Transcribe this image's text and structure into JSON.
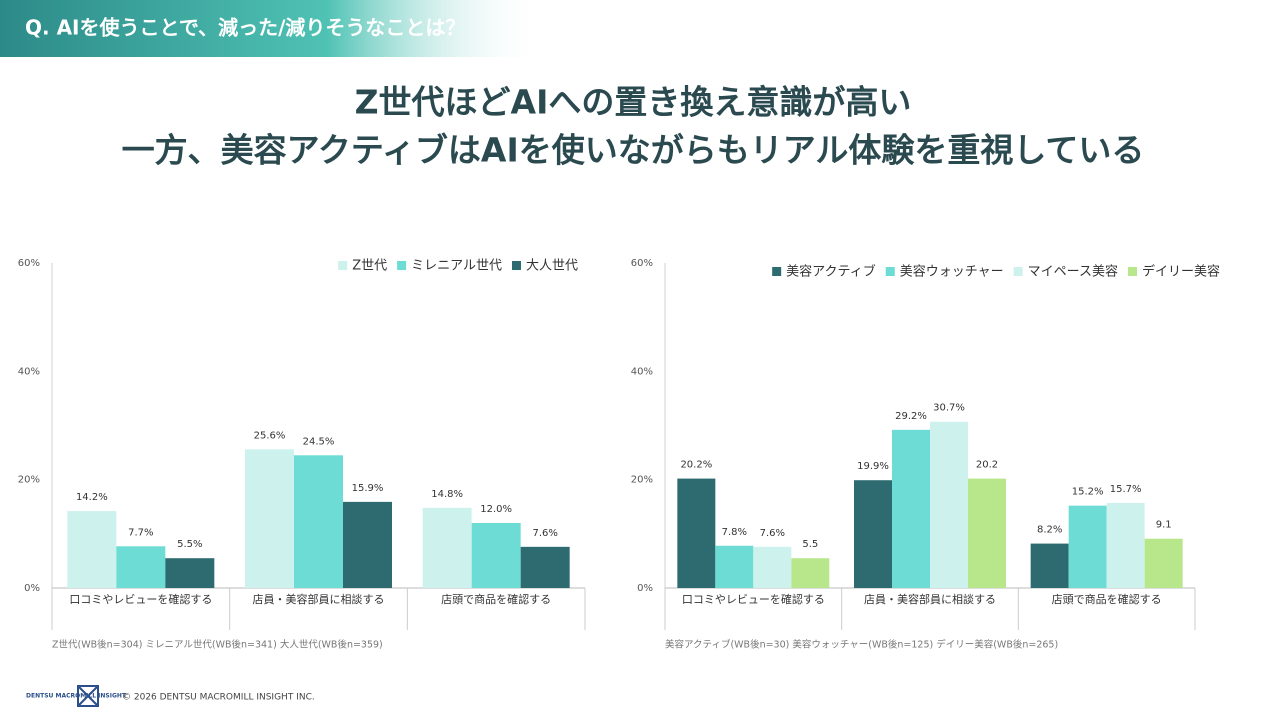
{
  "header": {
    "question": "Q. AIを使うことで、減った/減りそうなことは？"
  },
  "headline": [
    "Z世代ほどAIへの置き換え意識が高い",
    "一方、美容アクティブはAIを使いながらもリアル体験を重視している"
  ],
  "chart_data": [
    {
      "type": "bar",
      "categories": [
        "口コミやレビューを確認する",
        "店員・美容部員に相談する",
        "店頭で商品を確認する"
      ],
      "series": [
        {
          "name": "Z世代",
          "color": "#cdf2ee",
          "values": [
            14.2,
            25.6,
            14.8
          ],
          "value_labels": [
            "14.2%",
            "25.6%",
            "14.8%"
          ]
        },
        {
          "name": "ミレニアル世代",
          "color": "#6ddcd4",
          "values": [
            7.7,
            24.5,
            12.0
          ],
          "value_labels": [
            "7.7%",
            "24.5%",
            "12.0%"
          ]
        },
        {
          "name": "大人世代",
          "color": "#2e6b70",
          "values": [
            5.5,
            15.9,
            7.6
          ],
          "value_labels": [
            "5.5%",
            "15.9%",
            "7.6%"
          ]
        }
      ],
      "ylim": [
        0,
        60
      ],
      "yticks": [
        {
          "value": 0,
          "label": "0%"
        },
        {
          "value": 20,
          "label": "20%"
        },
        {
          "value": 40,
          "label": "40%"
        },
        {
          "value": 60,
          "label": "60%"
        }
      ],
      "grid": false,
      "legend": "top-right",
      "footnote": "Z世代(WB後n=304) ミレニアル世代(WB後n=341) 大人世代(WB後n=359)"
    },
    {
      "type": "bar",
      "categories": [
        "口コミやレビューを確認する",
        "店員・美容部員に相談する",
        "店頭で商品を確認する"
      ],
      "series": [
        {
          "name": "美容アクティブ",
          "color": "#2e6b70",
          "values": [
            20.2,
            19.9,
            8.2
          ],
          "value_labels": [
            "20.2%",
            "19.9%",
            "8.2%"
          ]
        },
        {
          "name": "美容ウォッチャー",
          "color": "#6ddcd4",
          "values": [
            7.8,
            29.2,
            15.2
          ],
          "value_labels": [
            "7.8%",
            "29.2%",
            "15.2%"
          ]
        },
        {
          "name": "マイペース美容",
          "color": "#cdf2ee",
          "values": [
            7.6,
            30.7,
            15.7
          ],
          "value_labels": [
            "7.6%",
            "30.7%",
            "15.7%"
          ]
        },
        {
          "name": "デイリー美容",
          "color": "#b8e68a",
          "values": [
            5.5,
            20.2,
            9.1
          ]
        }
      ],
      "ylim": [
        0,
        60
      ],
      "yticks": [
        {
          "value": 0,
          "label": "0%"
        },
        {
          "value": 20,
          "label": "20%"
        },
        {
          "value": 40,
          "label": "40%"
        },
        {
          "value": 60,
          "label": "60%"
        }
      ],
      "grid": false,
      "legend": "top-right",
      "footnote": "美容アクティブ(WB後n=30) 美容ウォッチャー(WB後n=125) デイリー美容(WB後n=265)"
    }
  ],
  "footer": {
    "logo": "DENTSU MACROMILL INSIGHT",
    "copyright": "© 2026 DENTSU MACROMILL INSIGHT INC."
  }
}
